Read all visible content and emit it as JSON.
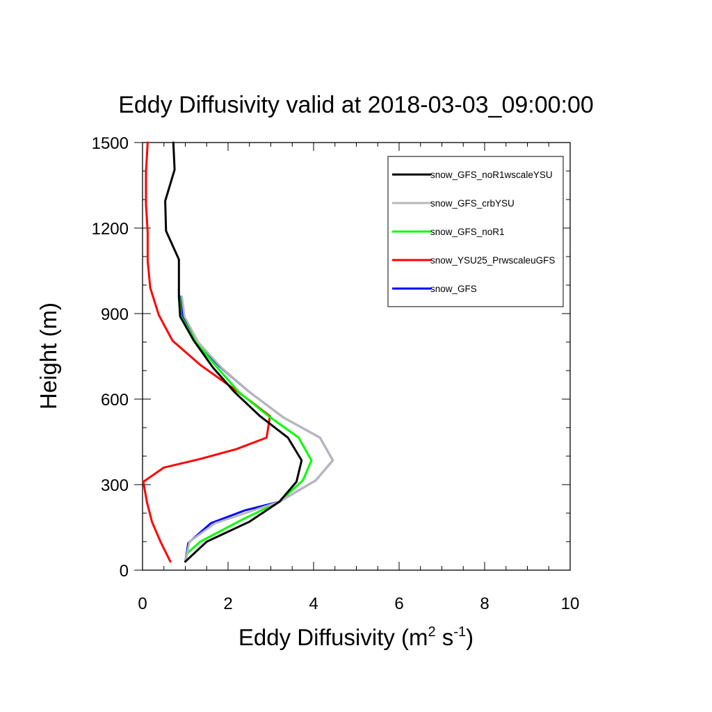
{
  "chart_data": {
    "type": "line",
    "title": "Eddy Diffusivity valid at 2018-03-03_09:00:00",
    "xlabel": {
      "base": "Eddy Diffusivity (m",
      "sup1": "2",
      "mid": " s",
      "sup2": "-1",
      "end": ")"
    },
    "ylabel": "Height (m)",
    "xlim": [
      0,
      10
    ],
    "ylim": [
      0,
      1500
    ],
    "x_ticks": [
      "0",
      "2",
      "4",
      "6",
      "8",
      "10"
    ],
    "y_ticks": [
      "0",
      "300",
      "600",
      "900",
      "1200",
      "1500"
    ],
    "legend_position": "top-right",
    "grid": false,
    "series": [
      {
        "name": "snow_GFS",
        "color": "#0000ff",
        "points": [
          [
            1.0,
            30
          ],
          [
            1.07,
            95
          ],
          [
            1.6,
            165
          ],
          [
            2.4,
            210
          ],
          [
            3.2,
            240
          ],
          [
            4.05,
            315
          ],
          [
            4.45,
            385
          ],
          [
            4.15,
            465
          ],
          [
            3.3,
            535
          ],
          [
            2.5,
            625
          ],
          [
            1.8,
            715
          ],
          [
            1.28,
            800
          ],
          [
            0.95,
            890
          ],
          [
            0.88,
            960
          ]
        ]
      },
      {
        "name": "snow_YSU25_PrwscaleuGFS",
        "color": "#ff0000",
        "points": [
          [
            0.65,
            30
          ],
          [
            0.42,
            100
          ],
          [
            0.22,
            170
          ],
          [
            0.1,
            240
          ],
          [
            0.02,
            310
          ],
          [
            0.5,
            360
          ],
          [
            1.35,
            390
          ],
          [
            2.2,
            425
          ],
          [
            2.9,
            465
          ],
          [
            2.98,
            540
          ],
          [
            2.55,
            590
          ],
          [
            2.05,
            645
          ],
          [
            1.35,
            720
          ],
          [
            0.7,
            805
          ],
          [
            0.38,
            895
          ],
          [
            0.18,
            990
          ],
          [
            0.12,
            1085
          ],
          [
            0.12,
            1185
          ],
          [
            0.08,
            1285
          ],
          [
            0.08,
            1395
          ],
          [
            0.12,
            1500
          ]
        ]
      },
      {
        "name": "snow_GFS_noR1",
        "color": "#00ff00",
        "points": [
          [
            1.0,
            30
          ],
          [
            1.05,
            60
          ],
          [
            1.35,
            100
          ],
          [
            2.3,
            175
          ],
          [
            3.2,
            240
          ],
          [
            3.75,
            315
          ],
          [
            3.95,
            385
          ],
          [
            3.65,
            465
          ],
          [
            2.95,
            540
          ],
          [
            2.25,
            625
          ],
          [
            1.75,
            710
          ],
          [
            1.25,
            800
          ],
          [
            0.9,
            890
          ],
          [
            0.86,
            960
          ]
        ]
      },
      {
        "name": "snow_GFS_crbYSU",
        "color": "#b8b8b8",
        "points": [
          [
            1.0,
            30
          ],
          [
            1.1,
            100
          ],
          [
            1.7,
            165
          ],
          [
            2.5,
            205
          ],
          [
            3.2,
            240
          ],
          [
            4.05,
            315
          ],
          [
            4.45,
            385
          ],
          [
            4.15,
            465
          ],
          [
            3.3,
            535
          ],
          [
            2.5,
            625
          ],
          [
            1.85,
            710
          ],
          [
            1.3,
            800
          ],
          [
            0.98,
            890
          ],
          [
            0.92,
            960
          ]
        ]
      },
      {
        "name": "snow_GFS_noR1wscaleYSU",
        "color": "#000000",
        "points": [
          [
            1.0,
            30
          ],
          [
            1.5,
            100
          ],
          [
            2.5,
            170
          ],
          [
            3.2,
            240
          ],
          [
            3.6,
            310
          ],
          [
            3.72,
            385
          ],
          [
            3.4,
            465
          ],
          [
            2.75,
            540
          ],
          [
            2.15,
            625
          ],
          [
            1.65,
            710
          ],
          [
            1.2,
            805
          ],
          [
            0.88,
            890
          ],
          [
            0.85,
            960
          ],
          [
            0.85,
            1090
          ],
          [
            0.55,
            1190
          ],
          [
            0.53,
            1295
          ],
          [
            0.75,
            1405
          ],
          [
            0.72,
            1500
          ]
        ]
      }
    ],
    "legend_order": [
      "snow_GFS_noR1wscaleYSU",
      "snow_GFS_crbYSU",
      "snow_GFS_noR1",
      "snow_YSU25_PrwscaleuGFS",
      "snow_GFS"
    ]
  }
}
